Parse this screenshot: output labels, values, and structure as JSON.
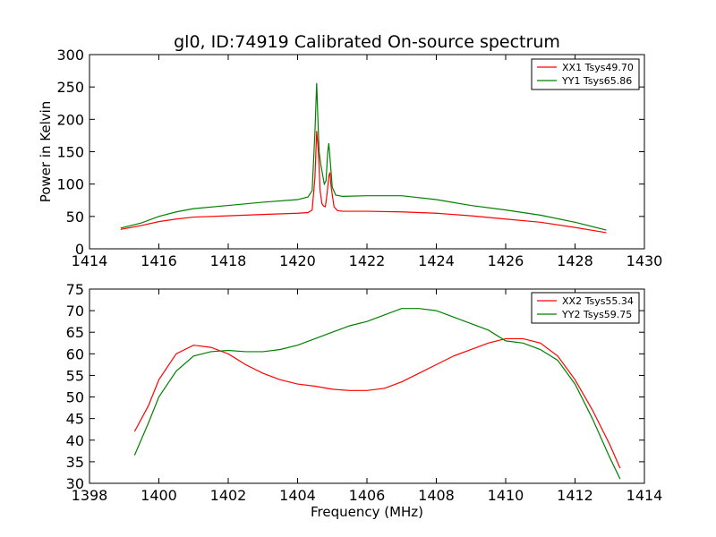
{
  "title": "gl0, ID:74919 Calibrated On-source spectrum",
  "chart_data": [
    {
      "type": "line",
      "ylabel": "Power in Kelvin",
      "xlabel": "",
      "xlim": [
        1414,
        1430
      ],
      "ylim": [
        0,
        300
      ],
      "xticks": [
        "1414",
        "1416",
        "1418",
        "1420",
        "1422",
        "1424",
        "1426",
        "1428",
        "1430"
      ],
      "yticks": [
        "0",
        "50",
        "100",
        "150",
        "200",
        "250",
        "300"
      ],
      "legend_position": "top-right",
      "series": [
        {
          "name": "XX1 Tsys49.70",
          "color": "#ff0000",
          "points": [
            [
              1414.9,
              30
            ],
            [
              1415.5,
              36
            ],
            [
              1416,
              42
            ],
            [
              1416.5,
              46
            ],
            [
              1417,
              49
            ],
            [
              1418,
              51
            ],
            [
              1419,
              53
            ],
            [
              1420,
              55
            ],
            [
              1420.3,
              56
            ],
            [
              1420.42,
              60
            ],
            [
              1420.5,
              110
            ],
            [
              1420.55,
              182
            ],
            [
              1420.6,
              150
            ],
            [
              1420.65,
              90
            ],
            [
              1420.7,
              70
            ],
            [
              1420.75,
              66
            ],
            [
              1420.8,
              65
            ],
            [
              1420.85,
              85
            ],
            [
              1420.9,
              112
            ],
            [
              1420.93,
              118
            ],
            [
              1420.97,
              95
            ],
            [
              1421.05,
              65
            ],
            [
              1421.15,
              59
            ],
            [
              1421.3,
              58
            ],
            [
              1422,
              58
            ],
            [
              1423,
              57
            ],
            [
              1424,
              55
            ],
            [
              1425,
              51
            ],
            [
              1426,
              46
            ],
            [
              1427,
              41
            ],
            [
              1428,
              33
            ],
            [
              1428.9,
              25
            ]
          ]
        },
        {
          "name": "YY1 Tsys65.86",
          "color": "#008000",
          "points": [
            [
              1414.9,
              32
            ],
            [
              1415.5,
              40
            ],
            [
              1416,
              50
            ],
            [
              1416.5,
              57
            ],
            [
              1417,
              62
            ],
            [
              1418,
              67
            ],
            [
              1419,
              72
            ],
            [
              1420,
              76
            ],
            [
              1420.3,
              80
            ],
            [
              1420.42,
              90
            ],
            [
              1420.5,
              180
            ],
            [
              1420.55,
              256
            ],
            [
              1420.58,
              210
            ],
            [
              1420.62,
              150
            ],
            [
              1420.67,
              130
            ],
            [
              1420.72,
              115
            ],
            [
              1420.77,
              100
            ],
            [
              1420.82,
              105
            ],
            [
              1420.87,
              150
            ],
            [
              1420.9,
              163
            ],
            [
              1420.95,
              130
            ],
            [
              1421,
              95
            ],
            [
              1421.1,
              83
            ],
            [
              1421.3,
              81
            ],
            [
              1422,
              82
            ],
            [
              1423,
              82
            ],
            [
              1424,
              76
            ],
            [
              1425,
              67
            ],
            [
              1426,
              60
            ],
            [
              1427,
              52
            ],
            [
              1428,
              41
            ],
            [
              1428.9,
              29
            ]
          ]
        }
      ]
    },
    {
      "type": "line",
      "ylabel": "",
      "xlabel": "Frequency (MHz)",
      "xlim": [
        1398,
        1414
      ],
      "ylim": [
        30,
        75
      ],
      "xticks": [
        "1398",
        "1400",
        "1402",
        "1404",
        "1406",
        "1408",
        "1410",
        "1412",
        "1414"
      ],
      "yticks": [
        "30",
        "35",
        "40",
        "45",
        "50",
        "55",
        "60",
        "65",
        "70",
        "75"
      ],
      "legend_position": "top-right",
      "series": [
        {
          "name": "XX2 Tsys55.34",
          "color": "#ff0000",
          "points": [
            [
              1399.3,
              42
            ],
            [
              1399.7,
              48
            ],
            [
              1400,
              54
            ],
            [
              1400.5,
              60
            ],
            [
              1401,
              62
            ],
            [
              1401.5,
              61.5
            ],
            [
              1402,
              60
            ],
            [
              1402.5,
              57.5
            ],
            [
              1403,
              55.5
            ],
            [
              1403.5,
              54
            ],
            [
              1404,
              53
            ],
            [
              1404.5,
              52.5
            ],
            [
              1405,
              51.8
            ],
            [
              1405.5,
              51.5
            ],
            [
              1406,
              51.5
            ],
            [
              1406.5,
              52
            ],
            [
              1407,
              53.5
            ],
            [
              1407.5,
              55.5
            ],
            [
              1408,
              57.5
            ],
            [
              1408.5,
              59.5
            ],
            [
              1409,
              61
            ],
            [
              1409.5,
              62.5
            ],
            [
              1410,
              63.5
            ],
            [
              1410.5,
              63.5
            ],
            [
              1411,
              62.5
            ],
            [
              1411.5,
              59.5
            ],
            [
              1412,
              54
            ],
            [
              1412.5,
              47
            ],
            [
              1413,
              39
            ],
            [
              1413.3,
              33.5
            ]
          ]
        },
        {
          "name": "YY2 Tsys59.75",
          "color": "#008000",
          "points": [
            [
              1399.3,
              36.5
            ],
            [
              1399.7,
              44
            ],
            [
              1400,
              50
            ],
            [
              1400.5,
              56
            ],
            [
              1401,
              59.5
            ],
            [
              1401.5,
              60.5
            ],
            [
              1402,
              60.8
            ],
            [
              1402.5,
              60.5
            ],
            [
              1403,
              60.5
            ],
            [
              1403.5,
              61
            ],
            [
              1404,
              62
            ],
            [
              1404.5,
              63.5
            ],
            [
              1405,
              65
            ],
            [
              1405.5,
              66.5
            ],
            [
              1406,
              67.5
            ],
            [
              1406.5,
              69
            ],
            [
              1407,
              70.5
            ],
            [
              1407.5,
              70.5
            ],
            [
              1408,
              70
            ],
            [
              1408.5,
              68.5
            ],
            [
              1409,
              67
            ],
            [
              1409.5,
              65.5
            ],
            [
              1410,
              63
            ],
            [
              1410.5,
              62.5
            ],
            [
              1411,
              61
            ],
            [
              1411.5,
              58.5
            ],
            [
              1412,
              53
            ],
            [
              1412.5,
              45
            ],
            [
              1413,
              36
            ],
            [
              1413.3,
              31
            ]
          ]
        }
      ]
    }
  ]
}
